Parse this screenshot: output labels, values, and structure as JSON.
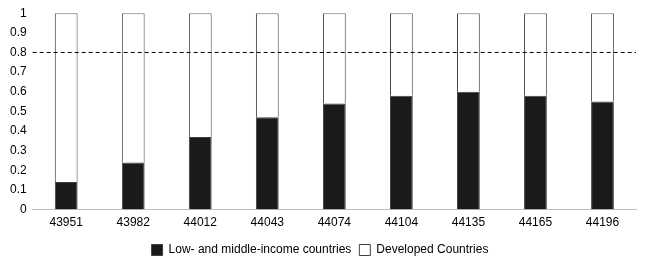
{
  "chart_data": {
    "type": "bar",
    "stacked": true,
    "grid": false,
    "legend": "bottom",
    "categories": [
      "43951",
      "43982",
      "44012",
      "44043",
      "44074",
      "44104",
      "44135",
      "44165",
      "44196"
    ],
    "series": [
      {
        "name": "Low- and middle-income countries",
        "color": "#1a1a1a",
        "values": [
          0.14,
          0.24,
          0.37,
          0.47,
          0.54,
          0.58,
          0.6,
          0.58,
          0.55
        ]
      },
      {
        "name": "Developed Countries",
        "color": "#ffffff",
        "values": [
          0.86,
          0.76,
          0.63,
          0.53,
          0.46,
          0.42,
          0.4,
          0.42,
          0.45
        ]
      }
    ],
    "ylim": [
      0,
      1
    ],
    "yticks": [
      0,
      0.1,
      0.2,
      0.3,
      0.4,
      0.5,
      0.6,
      0.7,
      0.8,
      0.9,
      1
    ],
    "reference_lines": [
      {
        "y": 0.8,
        "line_style": "dashed"
      }
    ]
  }
}
